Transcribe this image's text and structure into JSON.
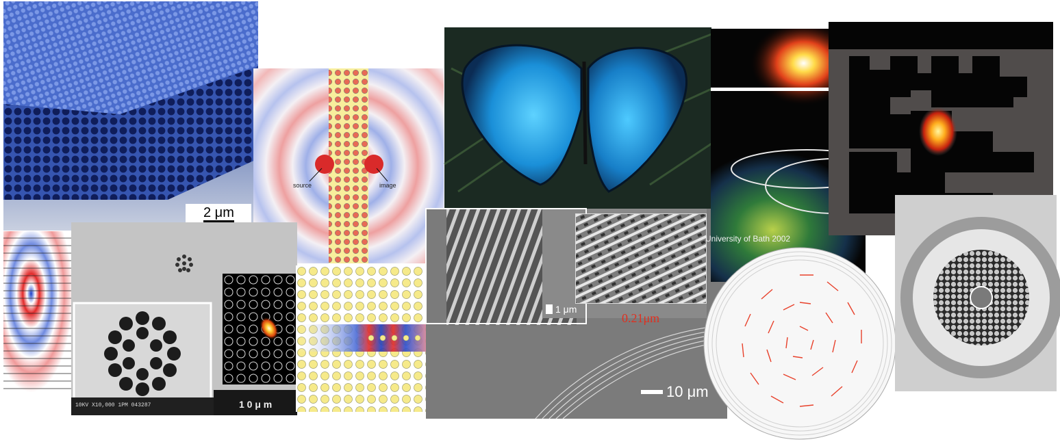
{
  "panels": {
    "opal": {
      "scale_label": "2 μm"
    },
    "crystal_lens": {
      "source_label": "source",
      "image_label": "image"
    },
    "fiber_sem": {
      "scale_label": "1 0 μ m",
      "footer_text": "10KV  X10,000   1PM  043287"
    },
    "ridge_sem": {
      "scale_label": "10 μm"
    },
    "inset_sem": {
      "scale_label": "1 μm",
      "measure_label": "0.21μm"
    },
    "bath": {
      "caption": "University of Bath 2002"
    }
  },
  "colors": {
    "opal_blue": "#3b5bb8",
    "field_red": "#e8333a",
    "field_blue": "#2a52c8",
    "rod_yellow": "#f6ea8a",
    "arrow_red": "#e8402a",
    "measure_red": "#e03020"
  }
}
